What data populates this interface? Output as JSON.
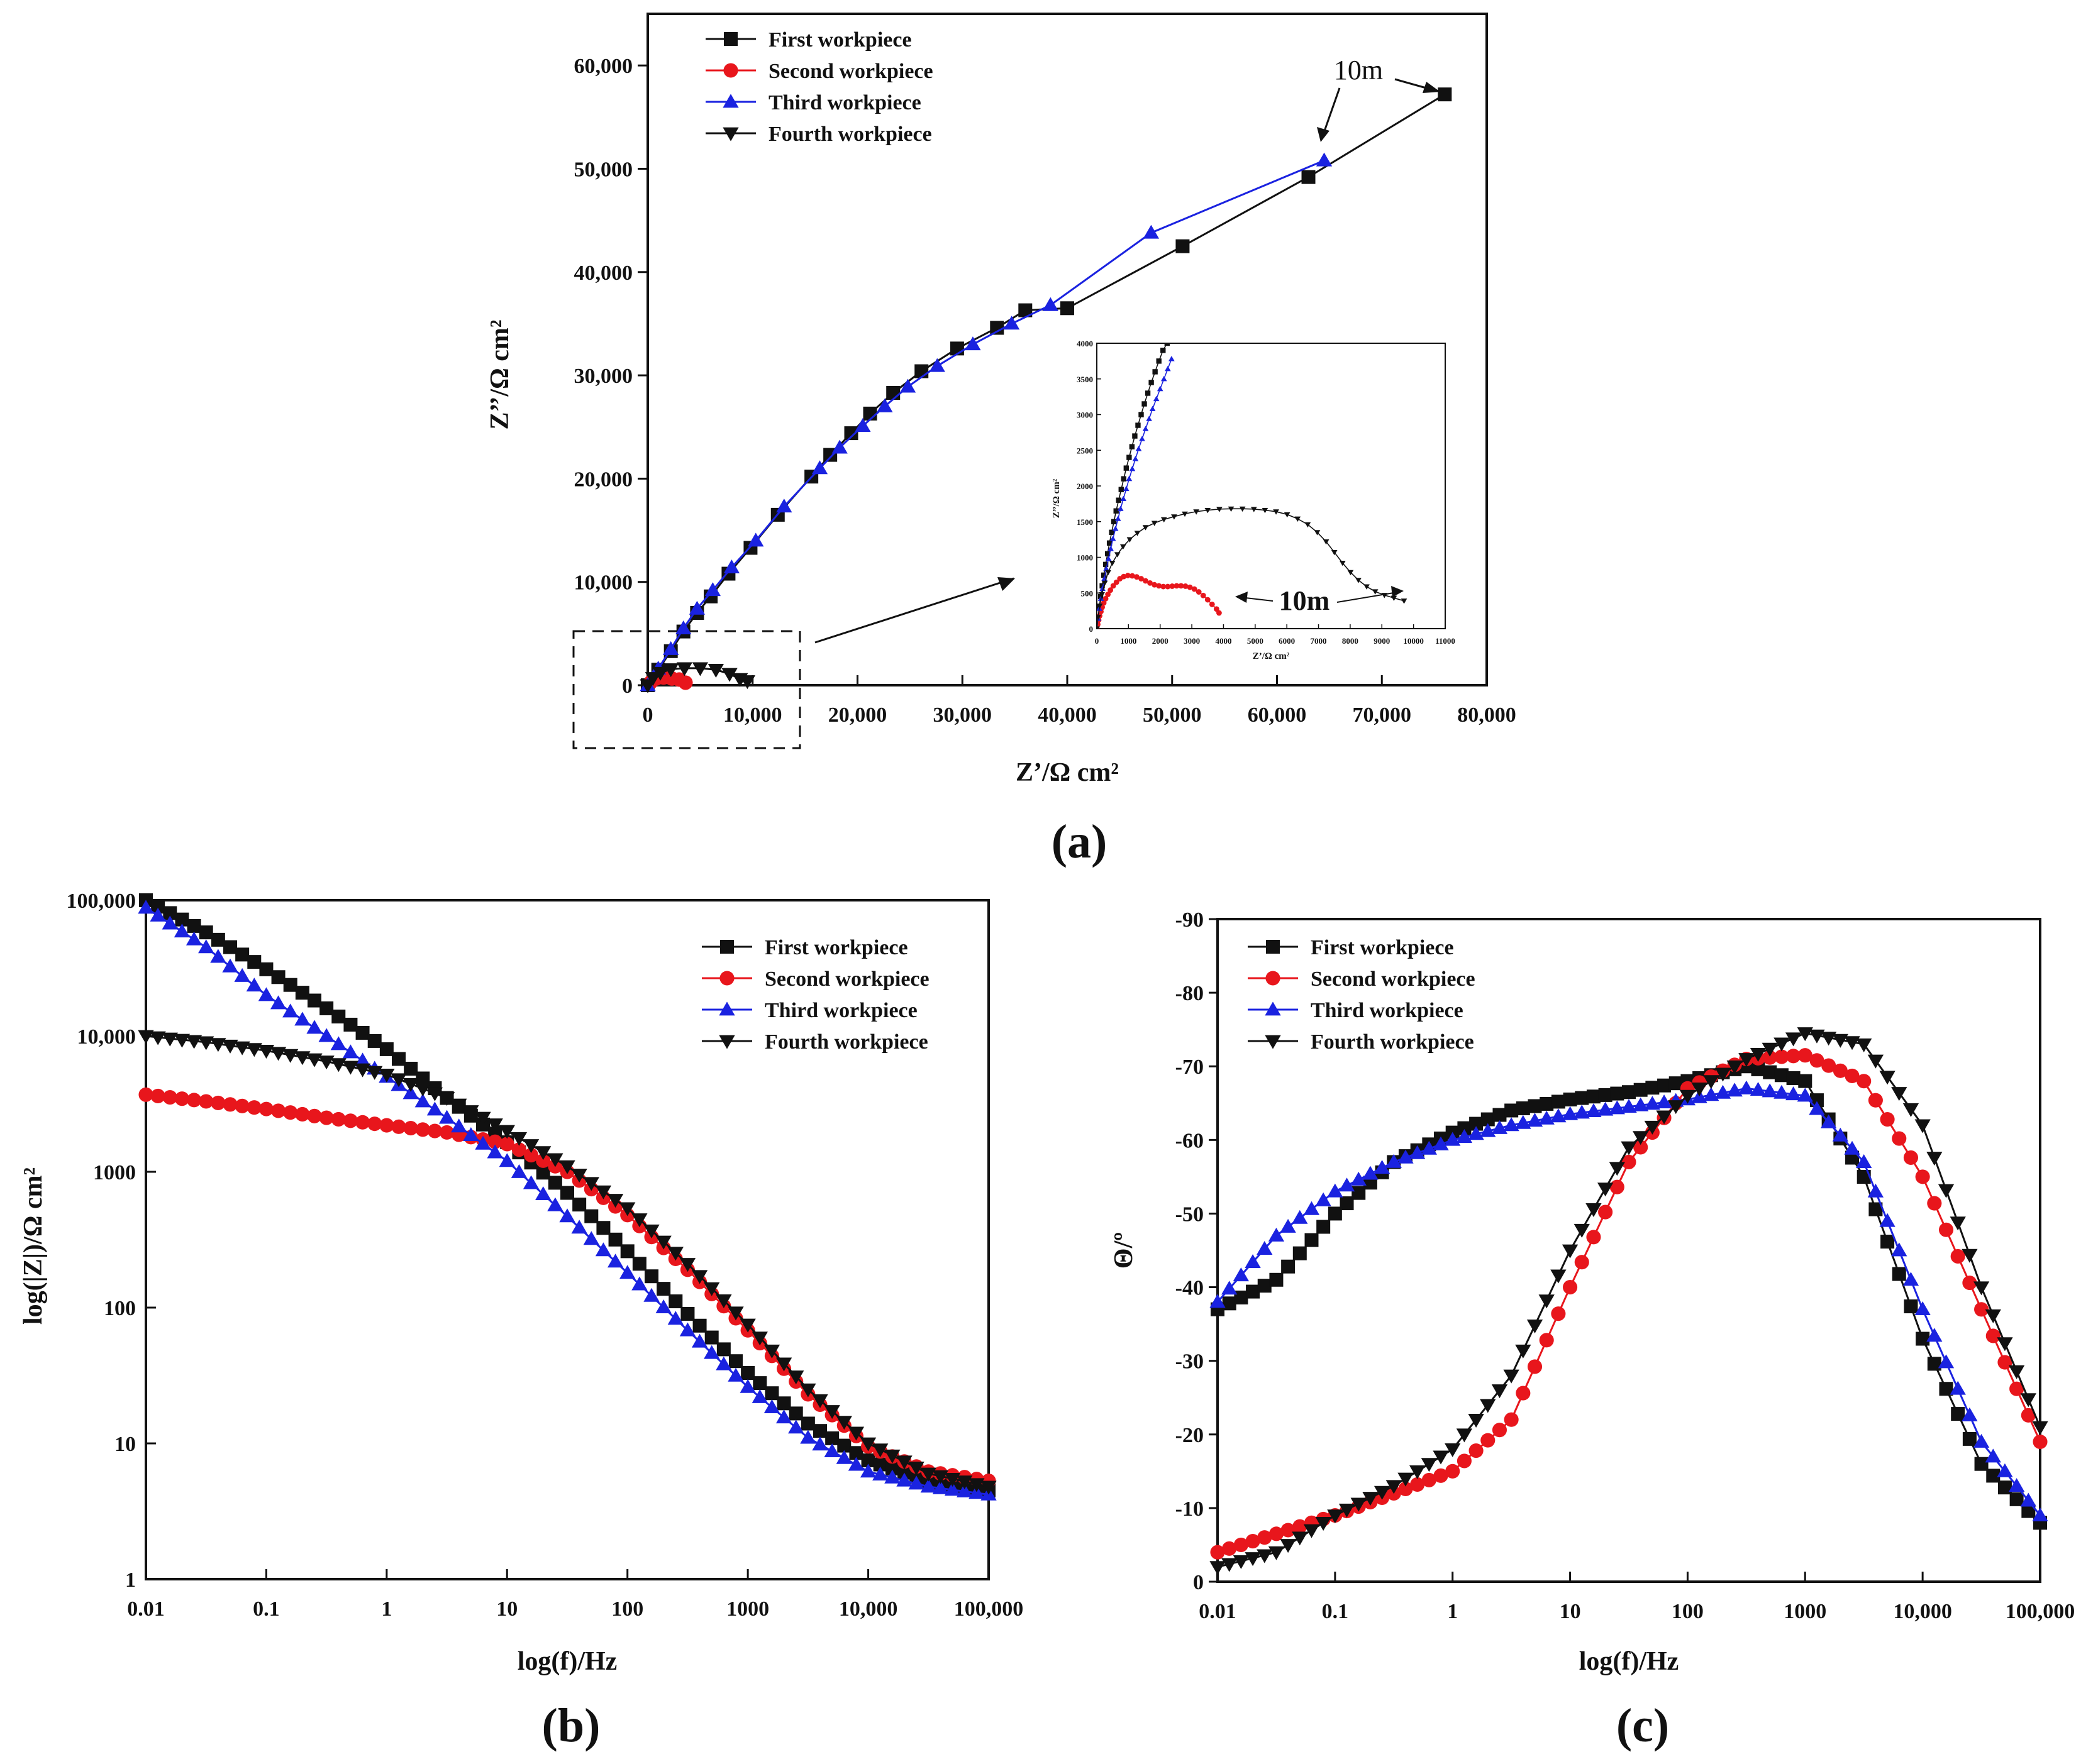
{
  "colors": {
    "black": "#111111",
    "red": "#e8161c",
    "blue": "#1a22e0"
  },
  "legend": [
    "First workpiece",
    "Second workpiece",
    "Third workpiece",
    "Fourth workpiece"
  ],
  "chart_data": [
    {
      "panel": "a",
      "type": "scatter",
      "caption": "(a)",
      "xlabel": "Z’/Ω cm²",
      "ylabel": "Z’’/Ω cm²",
      "xlim": [
        0,
        80000
      ],
      "ylim": [
        0,
        65000
      ],
      "xticks": [
        "0",
        "10,000",
        "20,000",
        "30,000",
        "40,000",
        "50,000",
        "60,000",
        "70,000",
        "80,000"
      ],
      "yticks": [
        "0",
        "10,000",
        "20,000",
        "30,000",
        "40,000",
        "50,000",
        "60,000"
      ],
      "annotation": "10m",
      "series": [
        {
          "name": "First workpiece",
          "color": "#111111",
          "marker": "square",
          "x": [
            0,
            1000,
            2200,
            3400,
            4700,
            6000,
            7700,
            9800,
            12400,
            15600,
            17400,
            19400,
            21200,
            23400,
            26100,
            29500,
            33300,
            36000
          ],
          "y": [
            0,
            1500,
            3300,
            5200,
            7000,
            8600,
            10800,
            13300,
            16500,
            20200,
            22300,
            24400,
            26300,
            28300,
            30400,
            32600,
            34600,
            36300
          ]
        },
        {
          "name": "Second workpiece",
          "color": "#e8161c",
          "marker": "circle",
          "x": [
            300,
            800,
            1500,
            2300,
            3000,
            3600
          ],
          "y": [
            300,
            650,
            750,
            650,
            550,
            250
          ]
        },
        {
          "name": "Third workpiece",
          "color": "#1a22e0",
          "marker": "triangle-up",
          "x": [
            0,
            1000,
            2200,
            3400,
            4700,
            6200,
            8000,
            10300,
            13000,
            16400,
            18300,
            20500,
            22600,
            24800,
            27600,
            31000,
            34700,
            38400
          ],
          "y": [
            0,
            1600,
            3500,
            5500,
            7400,
            9200,
            11400,
            14000,
            17300,
            21000,
            23000,
            25100,
            27000,
            28900,
            30900,
            33000,
            35000,
            36800
          ]
        },
        {
          "name": "Fourth workpiece",
          "color": "#111111",
          "marker": "triangle-down",
          "x": [
            0,
            500,
            1200,
            2200,
            3500,
            5000,
            6500,
            7800,
            8800,
            9500
          ],
          "y": [
            0,
            700,
            1200,
            1550,
            1650,
            1650,
            1500,
            1100,
            600,
            400
          ]
        }
      ],
      "extra_points": {
        "first": {
          "x": [
            40000,
            51000,
            63000,
            76000
          ],
          "y": [
            36500,
            42500,
            49200,
            57200
          ]
        },
        "third": {
          "x": [
            48000,
            64500
          ],
          "y": [
            43800,
            50800
          ]
        }
      },
      "inset": {
        "xticks": [
          "0",
          "1000",
          "2000",
          "3000",
          "4000",
          "5000",
          "6000",
          "7000",
          "8000",
          "9000",
          "10000",
          "11000"
        ],
        "yticks": [
          "0",
          "500",
          "1000",
          "1500",
          "2000",
          "2500",
          "3000",
          "3500",
          "4000"
        ],
        "xlabel": "Z’/Ω cm²",
        "ylabel": "Z’’/Ω cm²",
        "xlim": [
          0,
          11000
        ],
        "ylim": [
          0,
          4000
        ],
        "annotation": "10m",
        "series": [
          {
            "name": "First workpiece",
            "color": "#111111",
            "marker": "square",
            "x": [
              0,
              40,
              80,
              120,
              170,
              220,
              280,
              340,
              400,
              470,
              540,
              610,
              690,
              770,
              850,
              930,
              1020,
              1110,
              1200,
              1300,
              1400,
              1500,
              1610,
              1720,
              1840,
              1960,
              2090,
              2220
            ],
            "y": [
              0,
              150,
              300,
              450,
              600,
              750,
              900,
              1050,
              1200,
              1350,
              1500,
              1650,
              1800,
              1950,
              2100,
              2250,
              2400,
              2550,
              2700,
              2850,
              3000,
              3150,
              3300,
              3450,
              3600,
              3750,
              3900,
              4000
            ]
          },
          {
            "name": "Second workpiece",
            "color": "#e8161c",
            "marker": "circle",
            "x": [
              0,
              30,
              60,
              90,
              130,
              170,
              220,
              280,
              350,
              430,
              520,
              620,
              730,
              850,
              980,
              1120,
              1260,
              1400,
              1540,
              1680,
              1820,
              1960,
              2100,
              2240,
              2380,
              2520,
              2660,
              2800,
              2940,
              3080,
              3220,
              3360,
              3500,
              3640,
              3780,
              3860
            ],
            "y": [
              0,
              60,
              120,
              180,
              240,
              300,
              360,
              420,
              480,
              540,
              600,
              650,
              700,
              730,
              745,
              740,
              725,
              700,
              670,
              640,
              615,
              600,
              590,
              590,
              595,
              600,
              600,
              595,
              580,
              555,
              515,
              465,
              405,
              340,
              275,
              220
            ]
          },
          {
            "name": "Third workpiece",
            "color": "#1a22e0",
            "marker": "triangle-up",
            "x": [
              0,
              40,
              80,
              130,
              180,
              240,
              300,
              370,
              440,
              510,
              590,
              670,
              750,
              840,
              930,
              1020,
              1120,
              1220,
              1320,
              1430,
              1540,
              1650,
              1760,
              1880,
              2000,
              2120,
              2240,
              2360
            ],
            "y": [
              0,
              140,
              280,
              420,
              560,
              700,
              840,
              980,
              1120,
              1260,
              1400,
              1540,
              1680,
              1820,
              1960,
              2100,
              2240,
              2380,
              2520,
              2660,
              2800,
              2940,
              3080,
              3220,
              3360,
              3500,
              3640,
              3780
            ]
          },
          {
            "name": "Fourth workpiece",
            "color": "#111111",
            "marker": "triangle-down",
            "x": [
              0,
              40,
              90,
              160,
              250,
              360,
              490,
              650,
              830,
              1040,
              1280,
              1540,
              1820,
              2120,
              2440,
              2780,
              3140,
              3500,
              3870,
              4240,
              4600,
              4960,
              5310,
              5660,
              6010,
              6340,
              6660,
              6960,
              7240,
              7500,
              7760,
              8010,
              8260,
              8520,
              8790,
              9080,
              9380,
              9700
            ],
            "y": [
              0,
              160,
              320,
              480,
              640,
              790,
              920,
              1040,
              1150,
              1250,
              1340,
              1420,
              1480,
              1530,
              1570,
              1610,
              1640,
              1660,
              1675,
              1680,
              1680,
              1675,
              1660,
              1640,
              1600,
              1540,
              1460,
              1350,
              1220,
              1070,
              920,
              790,
              680,
              590,
              520,
              470,
              430,
              390
            ]
          }
        ]
      }
    },
    {
      "panel": "b",
      "type": "line",
      "caption": "(b)",
      "xlabel": "log(f)/Hz",
      "ylabel": "log(|Z|)/Ω cm²",
      "xscale": "log",
      "yscale": "log",
      "xlim": [
        0.01,
        100000
      ],
      "ylim": [
        1,
        100000
      ],
      "xticks": [
        "0.01",
        "0.1",
        "1",
        "10",
        "100",
        "1000",
        "10,000",
        "100,000"
      ],
      "yticks": [
        "1",
        "10",
        "100",
        "1000",
        "10,000",
        "100,000"
      ],
      "series": [
        {
          "name": "First workpiece",
          "color": "#111111",
          "marker": "square",
          "x": [
            0.01,
            0.0316,
            0.1,
            0.316,
            1,
            3.16,
            10,
            31.6,
            100,
            316,
            1000,
            3160,
            10000,
            31600,
            100000
          ],
          "y": [
            100000,
            58000,
            31000,
            16000,
            8000,
            3500,
            1650,
            700,
            260,
            90,
            33,
            14,
            7.5,
            5.3,
            4.5
          ]
        },
        {
          "name": "Second workpiece",
          "color": "#e8161c",
          "marker": "circle",
          "x": [
            0.01,
            0.0316,
            0.1,
            0.316,
            1,
            3.16,
            10,
            31.6,
            100,
            316,
            1000,
            3160,
            10000,
            31600,
            100000
          ],
          "y": [
            3700,
            3300,
            2900,
            2500,
            2200,
            1950,
            1600,
            1000,
            480,
            190,
            68,
            23,
            9.5,
            6.2,
            5.3
          ]
        },
        {
          "name": "Third workpiece",
          "color": "#1a22e0",
          "marker": "triangle-up",
          "x": [
            0.01,
            0.0316,
            0.1,
            0.316,
            1,
            3.16,
            10,
            31.6,
            100,
            316,
            1000,
            3160,
            10000,
            31600,
            100000
          ],
          "y": [
            88000,
            45000,
            20000,
            10000,
            5000,
            2500,
            1200,
            470,
            180,
            68,
            26,
            11,
            6.2,
            4.8,
            4.2
          ]
        },
        {
          "name": "Fourth workpiece",
          "color": "#111111",
          "marker": "triangle-down",
          "x": [
            0.01,
            0.0316,
            0.1,
            0.316,
            1,
            3.16,
            10,
            31.6,
            100,
            316,
            1000,
            3160,
            10000,
            31600,
            100000
          ],
          "y": [
            10000,
            9000,
            7800,
            6500,
            5200,
            3500,
            2000,
            1100,
            540,
            210,
            75,
            25,
            10,
            6,
            4.8
          ]
        }
      ]
    },
    {
      "panel": "c",
      "type": "line",
      "caption": "(c)",
      "xlabel": "log(f)/Hz",
      "ylabel": "Θ/º",
      "xscale": "log",
      "xlim": [
        0.01,
        100000
      ],
      "ylim": [
        0,
        -90
      ],
      "xticks": [
        "0.01",
        "0.1",
        "1",
        "10",
        "100",
        "1000",
        "10,000",
        "100,000"
      ],
      "yticks": [
        "0",
        "-10",
        "-20",
        "-30",
        "-40",
        "-50",
        "-60",
        "-70",
        "-80",
        "-90"
      ],
      "series": [
        {
          "name": "First workpiece",
          "color": "#111111",
          "marker": "square",
          "x": [
            0.01,
            0.0316,
            0.1,
            0.316,
            1,
            3.16,
            10,
            31.6,
            100,
            316,
            1000,
            3160,
            10000,
            31600,
            100000
          ],
          "y": [
            -37,
            -41,
            -50,
            -57,
            -61,
            -64,
            -65.5,
            -66.5,
            -68,
            -70,
            -68,
            -55,
            -33,
            -16,
            -8
          ]
        },
        {
          "name": "Second workpiece",
          "color": "#e8161c",
          "marker": "circle",
          "x": [
            0.01,
            0.0316,
            0.1,
            0.316,
            1,
            3.16,
            10,
            31.6,
            100,
            316,
            1000,
            3160,
            10000,
            31600,
            100000
          ],
          "y": [
            -4,
            -6.5,
            -9,
            -12,
            -15,
            -22,
            -40,
            -57,
            -67,
            -71,
            -71.5,
            -68,
            -55,
            -37,
            -19
          ]
        },
        {
          "name": "Third workpiece",
          "color": "#1a22e0",
          "marker": "triangle-up",
          "x": [
            0.01,
            0.0316,
            0.1,
            0.316,
            1,
            3.16,
            10,
            31.6,
            100,
            316,
            1000,
            3160,
            10000,
            31600,
            100000
          ],
          "y": [
            -38,
            -47,
            -53,
            -57,
            -60,
            -62,
            -63.5,
            -64.5,
            -65.5,
            -67,
            -66,
            -57,
            -37,
            -19,
            -9
          ]
        },
        {
          "name": "Fourth workpiece",
          "color": "#111111",
          "marker": "triangle-down",
          "x": [
            0.01,
            0.0316,
            0.1,
            0.316,
            1,
            3.16,
            10,
            31.6,
            100,
            316,
            1000,
            3160,
            10000,
            31600,
            100000
          ],
          "y": [
            -2,
            -4,
            -9,
            -13,
            -18,
            -28,
            -45,
            -59,
            -66,
            -71,
            -74.5,
            -73,
            -62,
            -40,
            -21
          ]
        }
      ]
    }
  ]
}
